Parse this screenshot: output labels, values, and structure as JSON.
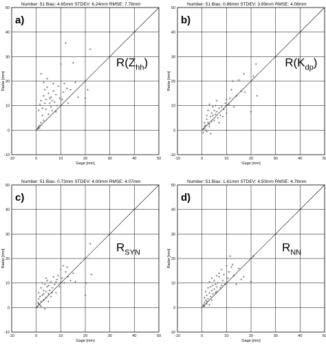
{
  "chart_data": [
    {
      "type": "scatter",
      "panel": "a)",
      "method": {
        "base": "R(Z",
        "sub": "hh",
        "tail": ")"
      },
      "stats": {
        "number": "Number:  51",
        "bias": "Bias:  4.65mm",
        "stdev": "STDEV: 6.24mm",
        "rmse": "RMSE:  7.78mm"
      },
      "xlabel": "Gage [mm]",
      "ylabel": "Radar [mm]",
      "xlim": [
        -10,
        50
      ],
      "ylim": [
        -10,
        50
      ],
      "xticks": [
        -10,
        0,
        10,
        20,
        30,
        40,
        50
      ],
      "yticks": [
        -10,
        0,
        10,
        20,
        30,
        40,
        50
      ],
      "grid": true,
      "one_to_one_line": true,
      "points": [
        [
          0.5,
          0.5
        ],
        [
          0.8,
          1.0
        ],
        [
          1.0,
          1.5
        ],
        [
          1.2,
          0.8
        ],
        [
          1.5,
          2.0
        ],
        [
          1.0,
          8.0
        ],
        [
          1.5,
          10.5
        ],
        [
          2.0,
          12.0
        ],
        [
          2.5,
          9.0
        ],
        [
          3.0,
          14.0
        ],
        [
          2.0,
          23.0
        ],
        [
          3.0,
          19.5
        ],
        [
          3.5,
          16.5
        ],
        [
          4.0,
          12.5
        ],
        [
          4.5,
          17.5
        ],
        [
          5.0,
          15.0
        ],
        [
          4.0,
          8.5
        ],
        [
          5.5,
          11.0
        ],
        [
          6.0,
          9.5
        ],
        [
          6.5,
          12.0
        ],
        [
          5.0,
          6.5
        ],
        [
          6.0,
          13.5
        ],
        [
          7.0,
          16.0
        ],
        [
          7.5,
          11.5
        ],
        [
          8.0,
          14.5
        ],
        [
          8.5,
          10.0
        ],
        [
          9.0,
          18.0
        ],
        [
          9.5,
          13.0
        ],
        [
          10.0,
          27.0
        ],
        [
          11.0,
          15.5
        ],
        [
          11.5,
          19.0
        ],
        [
          12.0,
          35.5
        ],
        [
          12.5,
          17.0
        ],
        [
          13.0,
          11.0
        ],
        [
          14.0,
          16.5
        ],
        [
          15.0,
          27.5
        ],
        [
          16.0,
          19.5
        ],
        [
          17.0,
          13.5
        ],
        [
          20.0,
          13.0
        ],
        [
          21.0,
          16.5
        ],
        [
          22.0,
          33.0
        ],
        [
          3.0,
          4.0
        ],
        [
          2.5,
          6.0
        ],
        [
          6.5,
          8.0
        ],
        [
          4.5,
          21.0
        ],
        [
          8.0,
          7.5
        ],
        [
          10.5,
          12.5
        ],
        [
          7.0,
          19.0
        ],
        [
          3.5,
          11.0
        ],
        [
          2.0,
          3.0
        ],
        [
          5.5,
          13.0
        ]
      ]
    },
    {
      "type": "scatter",
      "panel": "b)",
      "method": {
        "base": "R(K",
        "sub": "dp",
        "tail": ")"
      },
      "stats": {
        "number": "Number:  51",
        "bias": "Bias:  0.86mm",
        "stdev": "STDEV: 3.99mm",
        "rmse": "RMSE:  4.08mm"
      },
      "xlabel": "Gage [mm]",
      "ylabel": "Radar [mm]",
      "xlim": [
        -10,
        50
      ],
      "ylim": [
        -10,
        50
      ],
      "xticks": [
        -10,
        0,
        10,
        20,
        30,
        40,
        50
      ],
      "yticks": [
        -10,
        0,
        10,
        20,
        30,
        40,
        50
      ],
      "grid": true,
      "one_to_one_line": true,
      "points": [
        [
          0.5,
          -1.0
        ],
        [
          0.5,
          0.5
        ],
        [
          1.0,
          1.5
        ],
        [
          1.0,
          3.0
        ],
        [
          1.5,
          2.0
        ],
        [
          1.5,
          0.0
        ],
        [
          2.0,
          -0.5
        ],
        [
          2.0,
          4.5
        ],
        [
          2.5,
          3.0
        ],
        [
          2.5,
          8.0
        ],
        [
          3.0,
          10.5
        ],
        [
          3.0,
          1.5
        ],
        [
          3.5,
          5.5
        ],
        [
          3.5,
          -1.5
        ],
        [
          4.0,
          7.0
        ],
        [
          4.0,
          3.5
        ],
        [
          4.5,
          9.5
        ],
        [
          4.5,
          6.0
        ],
        [
          5.0,
          8.0
        ],
        [
          5.0,
          4.0
        ],
        [
          5.5,
          10.0
        ],
        [
          5.5,
          6.5
        ],
        [
          6.0,
          7.5
        ],
        [
          6.0,
          12.0
        ],
        [
          6.5,
          5.0
        ],
        [
          7.0,
          9.0
        ],
        [
          7.0,
          3.0
        ],
        [
          7.5,
          6.0
        ],
        [
          8.0,
          9.5
        ],
        [
          8.5,
          5.5
        ],
        [
          9.0,
          8.5
        ],
        [
          9.5,
          11.0
        ],
        [
          10.0,
          12.5
        ],
        [
          10.0,
          7.0
        ],
        [
          11.0,
          10.5
        ],
        [
          11.5,
          13.0
        ],
        [
          12.0,
          16.5
        ],
        [
          12.5,
          20.0
        ],
        [
          13.0,
          9.5
        ],
        [
          14.0,
          14.0
        ],
        [
          15.0,
          20.5
        ],
        [
          16.0,
          16.0
        ],
        [
          17.0,
          23.0
        ],
        [
          17.5,
          15.5
        ],
        [
          20.0,
          7.5
        ],
        [
          21.0,
          22.0
        ],
        [
          22.0,
          27.0
        ],
        [
          22.5,
          14.0
        ],
        [
          1.0,
          0.8
        ],
        [
          3.0,
          2.5
        ],
        [
          2.0,
          6.0
        ]
      ]
    },
    {
      "type": "scatter",
      "panel": "c)",
      "method": {
        "base": "R",
        "sub": "SYN",
        "tail": ""
      },
      "stats": {
        "number": "Number:  51",
        "bias": "Bias:  0.73mm",
        "stdev": "STDEV: 4.00mm",
        "rmse": "RMSE:  4.07mm"
      },
      "xlabel": "Gage [mm]",
      "ylabel": "Radar [mm]",
      "xlim": [
        -10,
        50
      ],
      "ylim": [
        -10,
        50
      ],
      "xticks": [
        -10,
        0,
        10,
        20,
        30,
        40,
        50
      ],
      "yticks": [
        -10,
        0,
        10,
        20,
        30,
        40,
        50
      ],
      "grid": true,
      "one_to_one_line": true,
      "points": [
        [
          0.5,
          0.5
        ],
        [
          0.8,
          2.0
        ],
        [
          1.0,
          3.5
        ],
        [
          1.0,
          6.0
        ],
        [
          1.5,
          4.5
        ],
        [
          1.5,
          1.0
        ],
        [
          2.0,
          8.0
        ],
        [
          2.0,
          2.5
        ],
        [
          2.5,
          5.0
        ],
        [
          2.5,
          10.0
        ],
        [
          3.0,
          7.0
        ],
        [
          3.0,
          3.0
        ],
        [
          3.5,
          9.5
        ],
        [
          3.5,
          -0.5
        ],
        [
          4.0,
          6.5
        ],
        [
          4.0,
          4.0
        ],
        [
          4.5,
          8.5
        ],
        [
          4.5,
          11.0
        ],
        [
          5.0,
          5.5
        ],
        [
          5.0,
          9.0
        ],
        [
          5.5,
          7.0
        ],
        [
          6.0,
          10.5
        ],
        [
          6.0,
          4.5
        ],
        [
          6.5,
          8.0
        ],
        [
          7.0,
          12.5
        ],
        [
          7.5,
          9.5
        ],
        [
          8.0,
          6.0
        ],
        [
          8.5,
          11.5
        ],
        [
          9.0,
          13.0
        ],
        [
          9.5,
          8.5
        ],
        [
          10.0,
          15.5
        ],
        [
          10.5,
          12.0
        ],
        [
          11.0,
          17.0
        ],
        [
          11.5,
          10.0
        ],
        [
          12.0,
          14.5
        ],
        [
          12.5,
          16.5
        ],
        [
          13.0,
          12.5
        ],
        [
          14.0,
          11.0
        ],
        [
          15.0,
          14.0
        ],
        [
          16.0,
          10.5
        ],
        [
          20.0,
          5.0
        ],
        [
          20.5,
          10.0
        ],
        [
          22.0,
          26.0
        ],
        [
          22.5,
          13.5
        ],
        [
          1.0,
          1.5
        ],
        [
          2.0,
          0.5
        ],
        [
          3.0,
          5.5
        ],
        [
          5.0,
          2.5
        ],
        [
          6.5,
          6.0
        ],
        [
          8.0,
          10.5
        ],
        [
          4.0,
          12.0
        ]
      ]
    },
    {
      "type": "scatter",
      "panel": "d)",
      "method": {
        "base": "R",
        "sub": "NN",
        "tail": ""
      },
      "stats": {
        "number": "Number:  51",
        "bias": "Bias:  1.61mm",
        "stdev": "STDEV: 4.50mm",
        "rmse": "RMSE:  4.78mm"
      },
      "xlabel": "Gage [mm]",
      "ylabel": "Radar [mm]",
      "xlim": [
        -10,
        50
      ],
      "ylim": [
        -10,
        50
      ],
      "xticks": [
        -10,
        0,
        10,
        20,
        30,
        40,
        50
      ],
      "yticks": [
        -10,
        0,
        10,
        20,
        30,
        40,
        50
      ],
      "grid": true,
      "one_to_one_line": true,
      "points": [
        [
          0.5,
          1.0
        ],
        [
          0.8,
          0.5
        ],
        [
          1.0,
          2.0
        ],
        [
          1.0,
          4.0
        ],
        [
          1.5,
          3.0
        ],
        [
          1.5,
          6.5
        ],
        [
          2.0,
          5.0
        ],
        [
          2.0,
          1.5
        ],
        [
          2.5,
          8.0
        ],
        [
          2.5,
          3.5
        ],
        [
          3.0,
          6.0
        ],
        [
          3.0,
          10.5
        ],
        [
          3.5,
          4.5
        ],
        [
          3.5,
          8.5
        ],
        [
          4.0,
          7.0
        ],
        [
          4.0,
          12.0
        ],
        [
          4.5,
          9.0
        ],
        [
          4.5,
          5.5
        ],
        [
          5.0,
          11.0
        ],
        [
          5.0,
          7.5
        ],
        [
          5.5,
          9.5
        ],
        [
          6.0,
          13.0
        ],
        [
          6.0,
          6.5
        ],
        [
          6.5,
          10.0
        ],
        [
          7.0,
          12.5
        ],
        [
          7.5,
          8.0
        ],
        [
          8.0,
          15.5
        ],
        [
          8.5,
          11.0
        ],
        [
          9.0,
          13.5
        ],
        [
          9.5,
          9.5
        ],
        [
          10.0,
          17.0
        ],
        [
          10.5,
          12.0
        ],
        [
          11.0,
          14.5
        ],
        [
          11.5,
          21.0
        ],
        [
          12.0,
          16.5
        ],
        [
          12.5,
          17.5
        ],
        [
          13.0,
          13.0
        ],
        [
          14.0,
          9.5
        ],
        [
          15.0,
          16.0
        ],
        [
          16.0,
          11.5
        ],
        [
          17.0,
          12.5
        ],
        [
          20.0,
          10.5
        ],
        [
          21.0,
          21.0
        ],
        [
          2.0,
          2.5
        ],
        [
          3.0,
          1.0
        ],
        [
          1.0,
          0.8
        ],
        [
          6.0,
          8.5
        ],
        [
          8.0,
          9.0
        ],
        [
          4.0,
          3.0
        ],
        [
          7.0,
          14.0
        ],
        [
          5.5,
          6.0
        ]
      ]
    }
  ]
}
